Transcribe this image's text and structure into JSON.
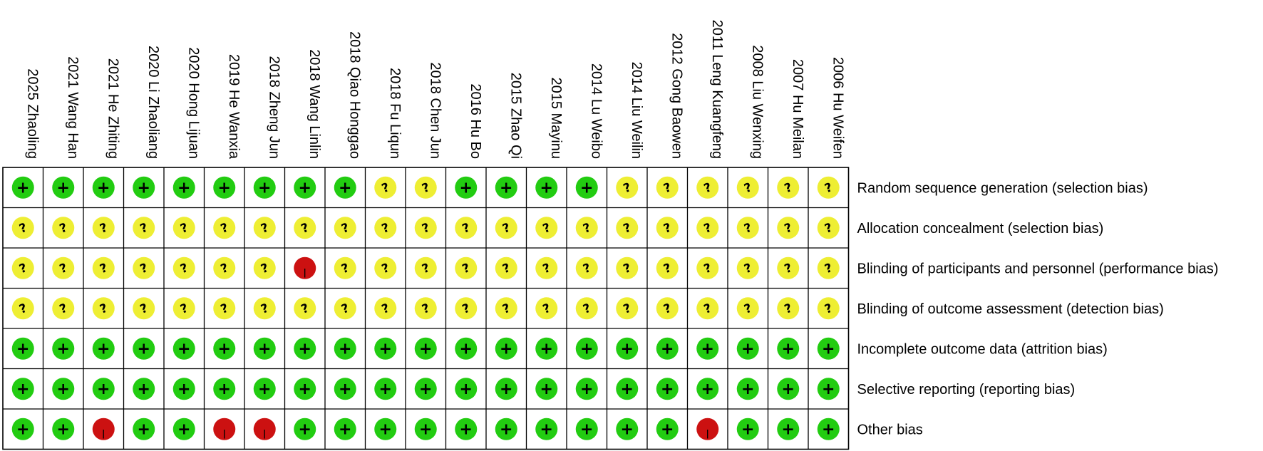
{
  "chart_data": {
    "type": "table",
    "title": "",
    "studies": [
      "2025 Zhaoling",
      "2021 Wang Han",
      "2021 He Zhiting",
      "2020 Li Zhaoliang",
      "2020 Hong Lijuan",
      "2019 He Wanxia",
      "2018 Zheng Jun",
      "2018 Wang Linlin",
      "2018 Qiao Honggao",
      "2018 Fu Liqun",
      "2018 Chen Jun",
      "2016 Hu Bo",
      "2015 Zhao Qi",
      "2015 Mayinu",
      "2014 Lu Weibo",
      "2014 Liu Weilin",
      "2012 Gong Baowen",
      "2011 Leng Kuangfeng",
      "2008 Liu Wenxing",
      "2007 Hu Meilan",
      "2006 Hu Weifen"
    ],
    "domains": [
      "Random sequence generation (selection bias)",
      "Allocation concealment (selection bias)",
      "Blinding of participants and personnel (performance bias)",
      "Blinding of outcome assessment (detection bias)",
      "Incomplete outcome data (attrition bias)",
      "Selective reporting (reporting bias)",
      "Other bias"
    ],
    "judgements": [
      [
        "+",
        "+",
        "+",
        "+",
        "+",
        "+",
        "+",
        "+",
        "+",
        "?",
        "?",
        "+",
        "+",
        "+",
        "+",
        "?",
        "?",
        "?",
        "?",
        "?",
        "?"
      ],
      [
        "?",
        "?",
        "?",
        "?",
        "?",
        "?",
        "?",
        "?",
        "?",
        "?",
        "?",
        "?",
        "?",
        "?",
        "?",
        "?",
        "?",
        "?",
        "?",
        "?",
        "?"
      ],
      [
        "?",
        "?",
        "?",
        "?",
        "?",
        "?",
        "?",
        "-",
        "?",
        "?",
        "?",
        "?",
        "?",
        "?",
        "?",
        "?",
        "?",
        "?",
        "?",
        "?",
        "?"
      ],
      [
        "?",
        "?",
        "?",
        "?",
        "?",
        "?",
        "?",
        "?",
        "?",
        "?",
        "?",
        "?",
        "?",
        "?",
        "?",
        "?",
        "?",
        "?",
        "?",
        "?",
        "?"
      ],
      [
        "+",
        "+",
        "+",
        "+",
        "+",
        "+",
        "+",
        "+",
        "+",
        "+",
        "+",
        "+",
        "+",
        "+",
        "+",
        "+",
        "+",
        "+",
        "+",
        "+",
        "+"
      ],
      [
        "+",
        "+",
        "+",
        "+",
        "+",
        "+",
        "+",
        "+",
        "+",
        "+",
        "+",
        "+",
        "+",
        "+",
        "+",
        "+",
        "+",
        "+",
        "+",
        "+",
        "+"
      ],
      [
        "+",
        "+",
        "-",
        "+",
        "+",
        "-",
        "-",
        "+",
        "+",
        "+",
        "+",
        "+",
        "+",
        "+",
        "+",
        "+",
        "+",
        "-",
        "+",
        "+",
        "+"
      ]
    ],
    "colors": {
      "+": "#22cc11",
      "?": "#eeee33",
      "-": "#cc1111"
    }
  }
}
